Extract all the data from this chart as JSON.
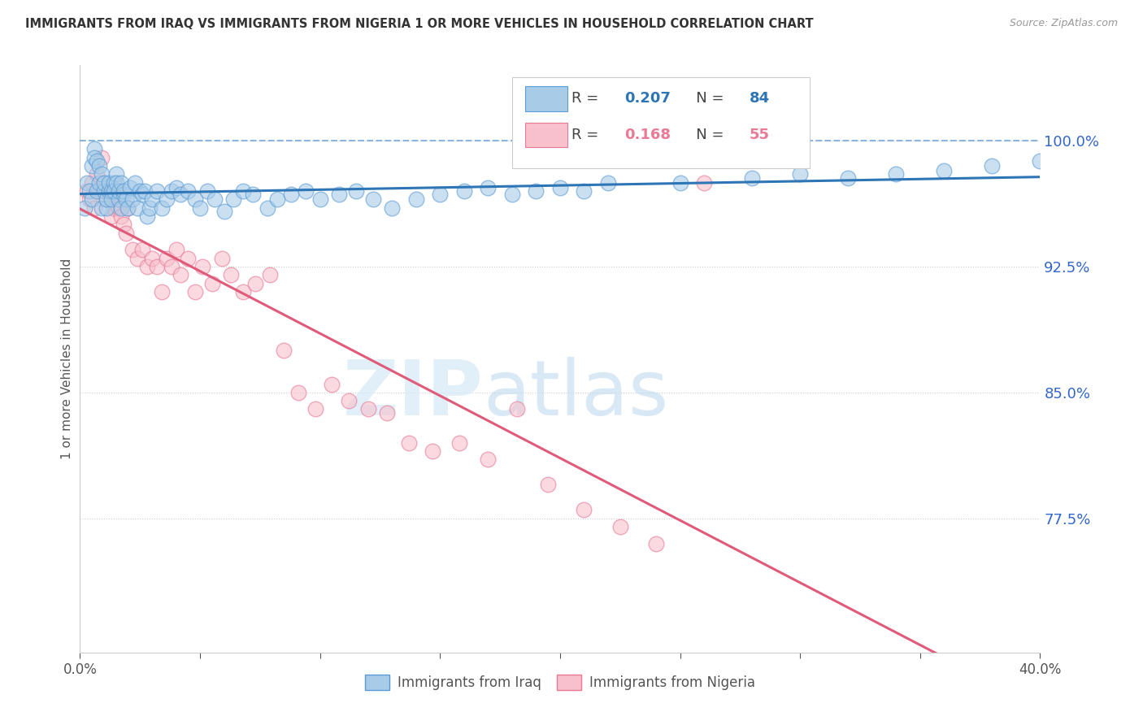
{
  "title": "IMMIGRANTS FROM IRAQ VS IMMIGRANTS FROM NIGERIA 1 OR MORE VEHICLES IN HOUSEHOLD CORRELATION CHART",
  "source": "Source: ZipAtlas.com",
  "ylabel": "1 or more Vehicles in Household",
  "ytick_labels": [
    "77.5%",
    "85.0%",
    "92.5%",
    "100.0%"
  ],
  "ytick_values": [
    0.775,
    0.85,
    0.925,
    1.0
  ],
  "xmin": 0.0,
  "xmax": 0.4,
  "ymin": 0.695,
  "ymax": 1.045,
  "iraq_R": 0.207,
  "iraq_N": 84,
  "nigeria_R": 0.168,
  "nigeria_N": 55,
  "iraq_color": "#a8cce8",
  "nigeria_color": "#f7c0cc",
  "iraq_edge_color": "#5b9bd5",
  "nigeria_edge_color": "#e87a96",
  "iraq_line_color": "#2e75b6",
  "nigeria_line_color": "#e05a7a",
  "legend_iraq_label": "Immigrants from Iraq",
  "legend_nigeria_label": "Immigrants from Nigeria",
  "watermark_zip": "ZIP",
  "watermark_atlas": "atlas",
  "iraq_scatter_x": [
    0.002,
    0.003,
    0.004,
    0.005,
    0.005,
    0.006,
    0.006,
    0.007,
    0.007,
    0.008,
    0.008,
    0.009,
    0.009,
    0.01,
    0.01,
    0.011,
    0.011,
    0.012,
    0.012,
    0.013,
    0.013,
    0.014,
    0.014,
    0.015,
    0.015,
    0.016,
    0.016,
    0.017,
    0.017,
    0.018,
    0.018,
    0.019,
    0.02,
    0.021,
    0.022,
    0.023,
    0.024,
    0.025,
    0.026,
    0.027,
    0.028,
    0.029,
    0.03,
    0.032,
    0.034,
    0.036,
    0.038,
    0.04,
    0.042,
    0.045,
    0.048,
    0.05,
    0.053,
    0.056,
    0.06,
    0.064,
    0.068,
    0.072,
    0.078,
    0.082,
    0.088,
    0.094,
    0.1,
    0.108,
    0.115,
    0.122,
    0.13,
    0.14,
    0.15,
    0.16,
    0.17,
    0.18,
    0.19,
    0.2,
    0.21,
    0.22,
    0.25,
    0.28,
    0.3,
    0.32,
    0.34,
    0.36,
    0.38,
    0.4
  ],
  "iraq_scatter_y": [
    0.96,
    0.975,
    0.97,
    0.985,
    0.965,
    0.995,
    0.99,
    0.988,
    0.97,
    0.985,
    0.975,
    0.98,
    0.96,
    0.97,
    0.975,
    0.96,
    0.965,
    0.97,
    0.975,
    0.97,
    0.965,
    0.975,
    0.97,
    0.98,
    0.975,
    0.965,
    0.97,
    0.96,
    0.975,
    0.968,
    0.97,
    0.965,
    0.96,
    0.972,
    0.965,
    0.975,
    0.96,
    0.97,
    0.968,
    0.97,
    0.955,
    0.96,
    0.965,
    0.97,
    0.96,
    0.965,
    0.97,
    0.972,
    0.968,
    0.97,
    0.965,
    0.96,
    0.97,
    0.965,
    0.958,
    0.965,
    0.97,
    0.968,
    0.96,
    0.965,
    0.968,
    0.97,
    0.965,
    0.968,
    0.97,
    0.965,
    0.96,
    0.965,
    0.968,
    0.97,
    0.972,
    0.968,
    0.97,
    0.972,
    0.97,
    0.975,
    0.975,
    0.978,
    0.98,
    0.978,
    0.98,
    0.982,
    0.985,
    0.988
  ],
  "nigeria_scatter_x": [
    0.003,
    0.004,
    0.005,
    0.006,
    0.007,
    0.008,
    0.009,
    0.01,
    0.011,
    0.012,
    0.013,
    0.014,
    0.015,
    0.016,
    0.017,
    0.018,
    0.019,
    0.02,
    0.022,
    0.024,
    0.026,
    0.028,
    0.03,
    0.032,
    0.034,
    0.036,
    0.038,
    0.04,
    0.042,
    0.045,
    0.048,
    0.051,
    0.055,
    0.059,
    0.063,
    0.068,
    0.073,
    0.079,
    0.085,
    0.091,
    0.098,
    0.105,
    0.112,
    0.12,
    0.128,
    0.137,
    0.147,
    0.158,
    0.17,
    0.182,
    0.195,
    0.21,
    0.225,
    0.24,
    0.26
  ],
  "nigeria_scatter_y": [
    0.97,
    0.965,
    0.975,
    0.96,
    0.98,
    0.97,
    0.99,
    0.975,
    0.965,
    0.97,
    0.955,
    0.96,
    0.965,
    0.96,
    0.955,
    0.95,
    0.945,
    0.96,
    0.935,
    0.93,
    0.935,
    0.925,
    0.93,
    0.925,
    0.91,
    0.93,
    0.925,
    0.935,
    0.92,
    0.93,
    0.91,
    0.925,
    0.915,
    0.93,
    0.92,
    0.91,
    0.915,
    0.92,
    0.875,
    0.85,
    0.84,
    0.855,
    0.845,
    0.84,
    0.838,
    0.82,
    0.815,
    0.82,
    0.81,
    0.84,
    0.795,
    0.78,
    0.77,
    0.76,
    0.975
  ]
}
